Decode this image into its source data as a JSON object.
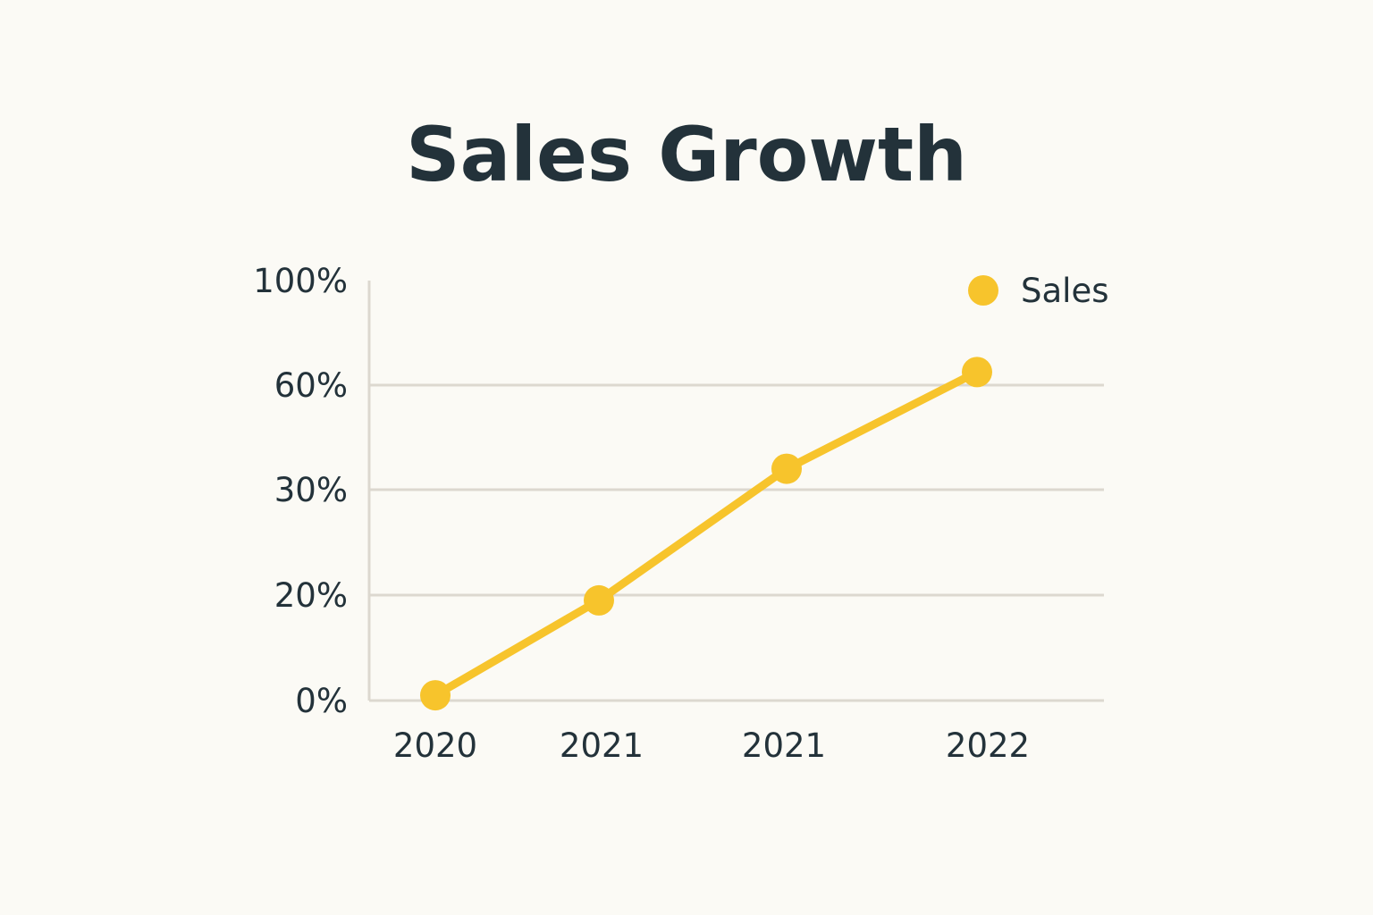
{
  "chart_data": {
    "type": "line",
    "title": "Sales Growth",
    "xlabel": "",
    "ylabel": "",
    "categories": [
      "2020",
      "2021",
      "2021",
      "2022"
    ],
    "y_ticks": [
      "0%",
      "20%",
      "30%",
      "60%",
      "100%"
    ],
    "series": [
      {
        "name": "Sales",
        "values": [
          1,
          19,
          36,
          65
        ],
        "color": "#f7c42c"
      }
    ],
    "ylim": [
      0,
      100
    ],
    "grid": true,
    "legend_position": "top-right",
    "axis_color": "#dcd8cf",
    "text_color": "#23323a"
  }
}
